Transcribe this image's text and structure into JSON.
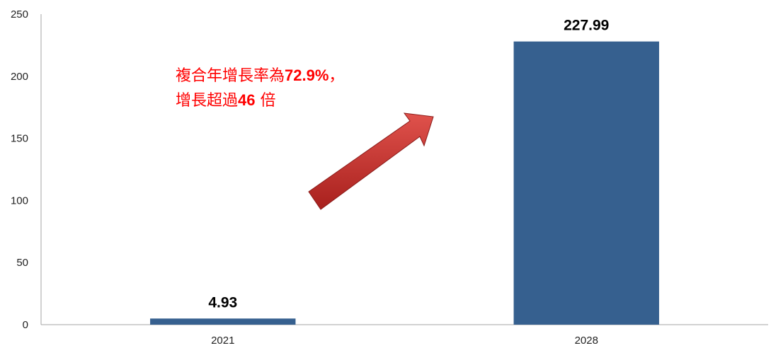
{
  "chart_data": {
    "type": "bar",
    "categories": [
      "2021",
      "2028"
    ],
    "values": [
      4.93,
      227.99
    ],
    "value_labels": [
      "4.93",
      "227.99"
    ],
    "title": "",
    "xlabel": "",
    "ylabel": "",
    "ylim": [
      0,
      250
    ],
    "yticks": [
      "0",
      "50",
      "100",
      "150",
      "200",
      "250"
    ],
    "grid": false,
    "legend": "none",
    "bar_color": "#36608f",
    "annotation": {
      "line1_text": "複合年增長率為",
      "line1_value": "72.9%",
      "line1_suffix": "，",
      "line2_text": "增長超過",
      "line2_value": "46",
      "line2_suffix": "倍",
      "color": "#ff0000"
    },
    "arrow_color": "#c0302c"
  }
}
